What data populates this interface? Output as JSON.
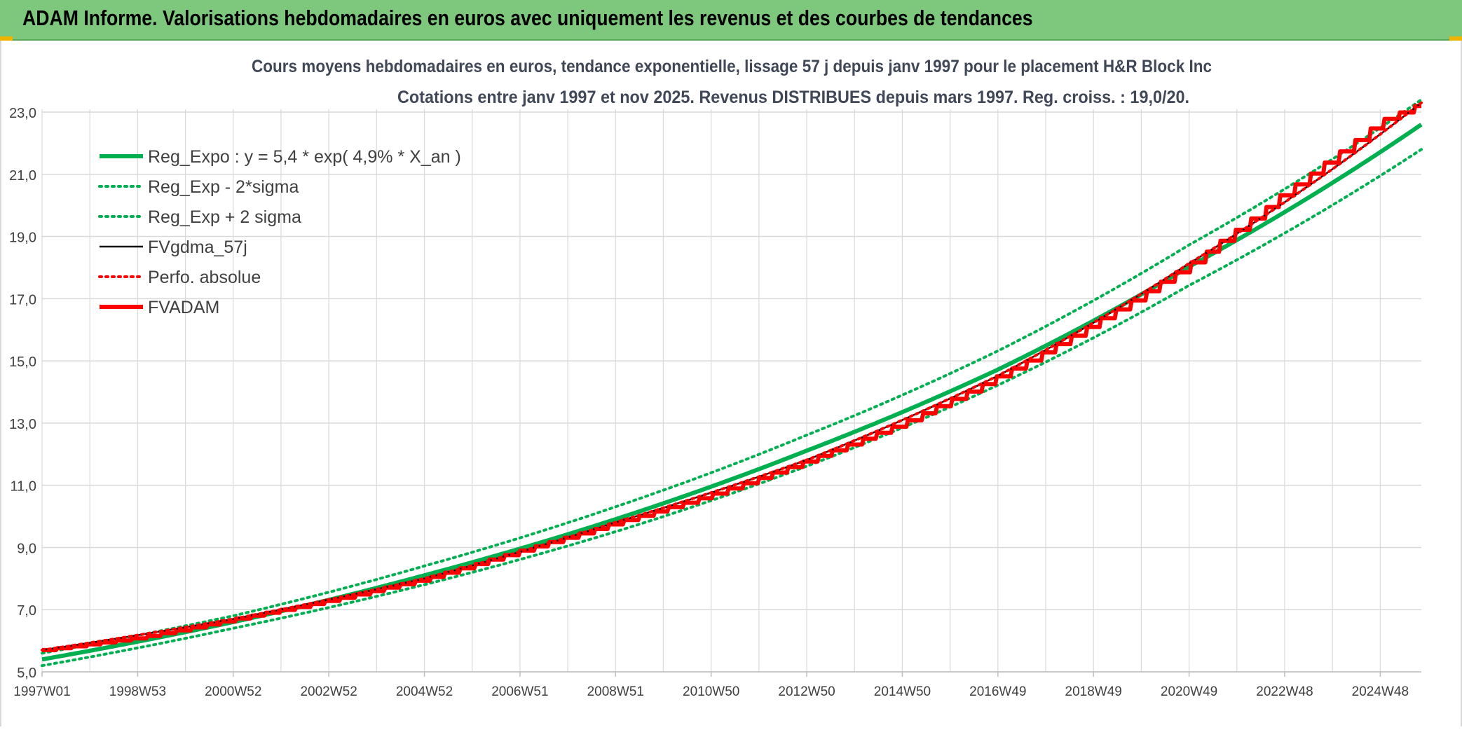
{
  "header": {
    "title": "ADAM Informe. Valorisations hebdomadaires en euros avec uniquement les revenus et des courbes de tendances"
  },
  "colors": {
    "header_bg": "#7dc87d",
    "reg_expo": "#00b050",
    "fvadam": "#ff0000",
    "fvgdma": "#000000",
    "grid": "#d9d9d9"
  },
  "chart_data": {
    "type": "line",
    "title": "Cours moyens hebdomadaires en euros, tendance exponentielle, lissage 57 j depuis janv 1997 pour le placement H&R Block Inc",
    "subtitle": "Cotations entre janv 1997 et nov 2025. Revenus DISTRIBUES depuis mars 1997. Reg. croiss. : 19,0/20.",
    "xlabel": "",
    "ylabel": "",
    "ylim": [
      5.0,
      23.0
    ],
    "yticks": [
      "5,0",
      "7,0",
      "9,0",
      "11,0",
      "13,0",
      "15,0",
      "17,0",
      "19,0",
      "21,0",
      "23,0"
    ],
    "xticks": [
      "1997W01",
      "1998W53",
      "2000W52",
      "2002W52",
      "2004W52",
      "2006W51",
      "2008W51",
      "2010W50",
      "2012W50",
      "2014W50",
      "2016W49",
      "2018W49",
      "2020W49",
      "2022W48",
      "2024W48"
    ],
    "x_range_years": [
      1997.0,
      2025.9
    ],
    "grid": true,
    "legend_position": "top-left",
    "series": [
      {
        "name": "Reg_Expo : y = 5,4 * exp( 4,9% *  X_an )",
        "color": "#00b050",
        "style": "solid-thick",
        "x": [
          1997.0,
          2001.0,
          2005.0,
          2009.0,
          2013.0,
          2017.0,
          2021.0,
          2025.9
        ],
        "values": [
          5.4,
          6.6,
          8.1,
          9.9,
          12.1,
          14.7,
          18.0,
          22.6
        ]
      },
      {
        "name": "Reg_Exp - 2*sigma",
        "color": "#00b050",
        "style": "dotted",
        "x": [
          1997.0,
          2001.0,
          2005.0,
          2009.0,
          2013.0,
          2017.0,
          2021.0,
          2025.9
        ],
        "values": [
          5.2,
          6.4,
          7.8,
          9.5,
          11.6,
          14.2,
          17.4,
          21.8
        ]
      },
      {
        "name": "Reg_Exp + 2 sigma",
        "color": "#00b050",
        "style": "dotted",
        "x": [
          1997.0,
          2001.0,
          2005.0,
          2009.0,
          2013.0,
          2017.0,
          2021.0,
          2025.9
        ],
        "values": [
          5.6,
          6.8,
          8.4,
          10.3,
          12.6,
          15.3,
          18.7,
          23.4
        ]
      },
      {
        "name": "FVgdma_57j",
        "color": "#000000",
        "style": "solid",
        "x": [
          1997.0,
          2001.0,
          2005.0,
          2009.0,
          2013.0,
          2017.0,
          2021.0,
          2025.9
        ],
        "values": [
          5.7,
          6.7,
          8.0,
          9.8,
          11.8,
          14.5,
          18.1,
          23.3
        ]
      },
      {
        "name": "Perfo. absolue",
        "color": "#ff0000",
        "style": "dotted",
        "x": [
          1997.0,
          2001.0,
          2005.0,
          2009.0,
          2013.0,
          2017.0,
          2021.0,
          2025.9
        ],
        "values": [
          5.7,
          6.7,
          8.0,
          9.8,
          11.8,
          14.5,
          18.1,
          23.3
        ]
      },
      {
        "name": "FVADAM",
        "color": "#ff0000",
        "style": "solid-thick",
        "x": [
          1997.0,
          1999.0,
          2001.0,
          2003.0,
          2005.0,
          2007.0,
          2009.0,
          2011.0,
          2013.0,
          2015.0,
          2017.0,
          2019.0,
          2021.0,
          2023.0,
          2025.0,
          2025.9
        ],
        "values": [
          5.7,
          6.1,
          6.7,
          7.3,
          8.0,
          8.9,
          9.8,
          10.7,
          11.8,
          13.0,
          14.5,
          16.2,
          18.1,
          20.4,
          22.7,
          23.3
        ]
      }
    ]
  }
}
